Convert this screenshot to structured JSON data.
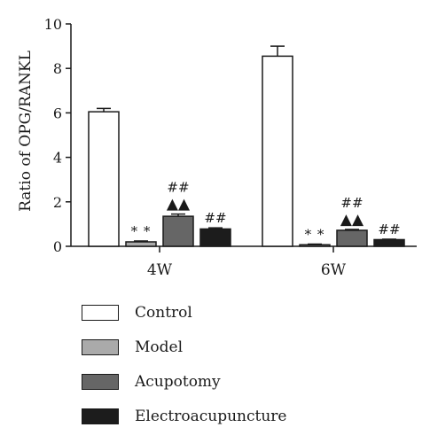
{
  "chart_data": {
    "type": "bar",
    "ylabel": "Ratio of OPG/RANKL",
    "ylim": [
      0,
      10
    ],
    "yticks": [
      "0",
      "2",
      "4",
      "6",
      "8",
      "10"
    ],
    "categories": [
      "4W",
      "6W"
    ],
    "series": [
      {
        "name": "Control",
        "color": "#ffffff",
        "values": [
          6.05,
          8.55
        ],
        "errors": [
          0.15,
          0.45
        ],
        "markers": [
          "",
          ""
        ]
      },
      {
        "name": "Model",
        "color": "#aaaaaa",
        "values": [
          0.2,
          0.07
        ],
        "errors": [
          0.04,
          0.03
        ],
        "markers": [
          "* *",
          "* *"
        ]
      },
      {
        "name": "Acupotomy",
        "color": "#666666",
        "values": [
          1.35,
          0.72
        ],
        "errors": [
          0.1,
          0.04
        ],
        "markers": [
          "##\n▲▲",
          "##\n▲▲"
        ]
      },
      {
        "name": "Electroacupuncture",
        "color": "#1c1c1c",
        "values": [
          0.78,
          0.3
        ],
        "errors": [
          0.05,
          0.02
        ],
        "markers": [
          "##",
          "##"
        ]
      }
    ],
    "legend_position": "bottom"
  }
}
